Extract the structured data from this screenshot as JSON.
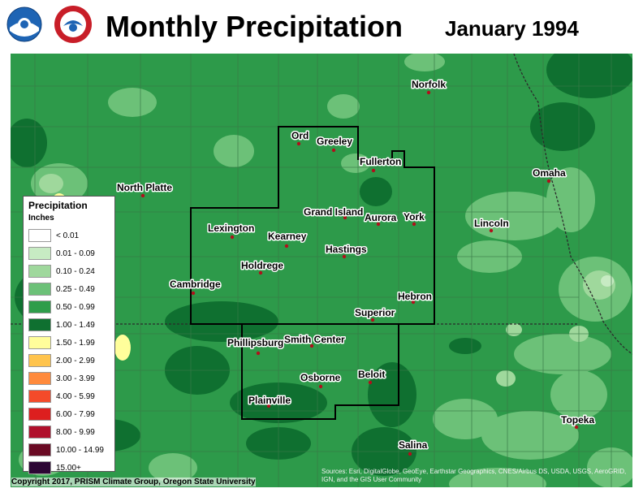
{
  "header": {
    "title": "Monthly Precipitation",
    "period": "January 1994",
    "logos": [
      "noaa-logo",
      "national-weather-service-logo"
    ]
  },
  "colors": {
    "background_green": "#2d9a4a",
    "dark_green": "#137a34",
    "light_green": "#7bc985",
    "pale_green": "#b7e2b5",
    "boundary": "#555555",
    "region_outline": "#000000",
    "city_dot": "#b0101c"
  },
  "legend": {
    "title": "Precipitation",
    "units": "Inches",
    "items": [
      {
        "label": "< 0.01",
        "color": "#ffffff"
      },
      {
        "label": "0.01 - 0.09",
        "color": "#c7ebc3"
      },
      {
        "label": "0.10 - 0.24",
        "color": "#9fd89c"
      },
      {
        "label": "0.25 - 0.49",
        "color": "#6cc178"
      },
      {
        "label": "0.50 - 0.99",
        "color": "#2e9d4a"
      },
      {
        "label": "1.00 - 1.49",
        "color": "#0f7030"
      },
      {
        "label": "1.50 - 1.99",
        "color": "#fffe9b"
      },
      {
        "label": "2.00 - 2.99",
        "color": "#ffc44d"
      },
      {
        "label": "3.00 - 3.99",
        "color": "#ff8a3c"
      },
      {
        "label": "4.00 - 5.99",
        "color": "#f44a2a"
      },
      {
        "label": "6.00 - 7.99",
        "color": "#dd1f1f"
      },
      {
        "label": "8.00 - 9.99",
        "color": "#b0102c"
      },
      {
        "label": "10.00 - 14.99",
        "color": "#6a0a24"
      },
      {
        "label": "15.00+",
        "color": "#2c0634"
      }
    ]
  },
  "cities": [
    {
      "name": "Norfolk"
    },
    {
      "name": "Ord"
    },
    {
      "name": "Greeley"
    },
    {
      "name": "Fullerton"
    },
    {
      "name": "North Platte"
    },
    {
      "name": "Omaha"
    },
    {
      "name": "Grand Island"
    },
    {
      "name": "Aurora"
    },
    {
      "name": "York"
    },
    {
      "name": "Lexington"
    },
    {
      "name": "Kearney"
    },
    {
      "name": "Lincoln"
    },
    {
      "name": "Hastings"
    },
    {
      "name": "Holdrege"
    },
    {
      "name": "Cambridge"
    },
    {
      "name": "Hebron"
    },
    {
      "name": "Superior"
    },
    {
      "name": "Phillipsburg"
    },
    {
      "name": "Smith Center"
    },
    {
      "name": "Beloit"
    },
    {
      "name": "Osborne"
    },
    {
      "name": "Plainville"
    },
    {
      "name": "Topeka"
    },
    {
      "name": "Salina"
    }
  ],
  "footer": {
    "copyright": "Copyright 2017, PRISM Climate Group, Oregon State University",
    "credits": "Sources: Esri, DigitalGlobe, GeoEye, Earthstar Geographics, CNES/Airbus DS, USDA, USGS, AeroGRID, IGN, and the GIS User Community"
  }
}
